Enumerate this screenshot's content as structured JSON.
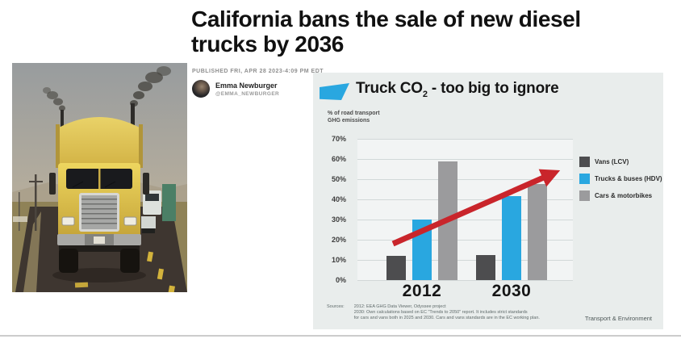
{
  "article": {
    "headline": "California bans the sale of new diesel\ntrucks by 2036",
    "published_line": "PUBLISHED FRI, APR 28 2023-4:09 PM EDT",
    "author_name": "Emma Newburger",
    "author_handle": "@EMMA_NEWBURGER"
  },
  "chart": {
    "title_prefix": "Truck CO",
    "title_subscript": "2",
    "title_suffix": " - too big to ignore",
    "ylabel_line1": "% of road transport",
    "ylabel_line2": "GHG emissions",
    "sources_label": "Sources:",
    "sources_lines": [
      "2012: EEA GHG Data Viewer, Odyssee project",
      "2030: Own calculations based on EC \"Trends to 2050\" report. It includes strict standards",
      "for cars and vans both in 2025 and 2030. Cars and vans standards are in the EC working plan."
    ],
    "credit": "Transport & Environment",
    "marker_icon": "blue-trapezoid",
    "colors": {
      "card_bg": "#e9edec",
      "plot_bg": "#f2f4f4",
      "accent_blue": "#29a7e0",
      "arrow_red": "#c9252b"
    }
  },
  "chart_data": {
    "type": "bar",
    "title": "Truck CO2 - too big to ignore",
    "ylabel": "% of road transport GHG emissions",
    "categories": [
      "2012",
      "2030"
    ],
    "series": [
      {
        "name": "Vans (LCV)",
        "color": "#4d4d4f",
        "values": [
          12,
          12.5
        ]
      },
      {
        "name": "Trucks & buses (HDV)",
        "color": "#29a7e0",
        "values": [
          30,
          41.5
        ]
      },
      {
        "name": "Cars & motorbikes",
        "color": "#9b9b9d",
        "values": [
          59,
          47.5
        ]
      }
    ],
    "ylim": [
      0,
      70
    ],
    "ytick_step": 10,
    "ytick_suffix": "%",
    "grid": true,
    "legend_position": "right",
    "trend_arrow": {
      "x1_pct": 16.5,
      "y1_value": 18,
      "x2_pct": 90,
      "y2_value": 52.5,
      "color": "#c9252b"
    }
  }
}
